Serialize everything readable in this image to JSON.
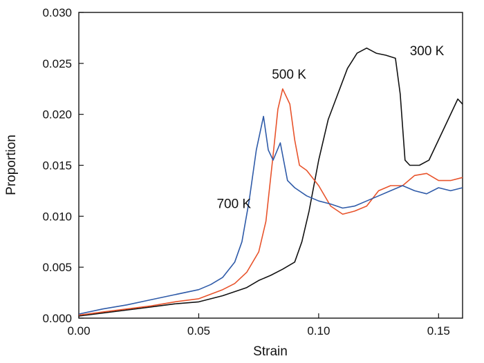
{
  "chart_data": {
    "type": "line",
    "title": "",
    "xlabel": "Strain",
    "ylabel": "Proportion",
    "xlim": [
      0.0,
      0.16
    ],
    "ylim": [
      0.0,
      0.03
    ],
    "xticks": [
      0.0,
      0.05,
      0.1,
      0.15
    ],
    "xtick_labels": [
      "0.00",
      "0.05",
      "0.10",
      "0.15"
    ],
    "yticks": [
      0.0,
      0.005,
      0.01,
      0.015,
      0.02,
      0.025,
      0.03
    ],
    "ytick_labels": [
      "0.000",
      "0.005",
      "0.010",
      "0.015",
      "0.020",
      "0.025",
      "0.030"
    ],
    "grid": false,
    "legend": "none",
    "series": [
      {
        "name": "300 K",
        "color": "#111111",
        "label_anchor": [
          0.138,
          0.0258
        ],
        "x": [
          0.0,
          0.01,
          0.02,
          0.03,
          0.04,
          0.05,
          0.06,
          0.07,
          0.075,
          0.08,
          0.085,
          0.09,
          0.093,
          0.096,
          0.1,
          0.104,
          0.108,
          0.112,
          0.116,
          0.12,
          0.124,
          0.128,
          0.132,
          0.134,
          0.136,
          0.138,
          0.142,
          0.146,
          0.15,
          0.154,
          0.158,
          0.16
        ],
        "y": [
          0.0002,
          0.0005,
          0.0008,
          0.0011,
          0.0014,
          0.0016,
          0.0022,
          0.003,
          0.0037,
          0.0042,
          0.0048,
          0.0055,
          0.0075,
          0.0105,
          0.0155,
          0.0195,
          0.022,
          0.0245,
          0.026,
          0.0265,
          0.026,
          0.0258,
          0.0255,
          0.022,
          0.0155,
          0.015,
          0.015,
          0.0155,
          0.0175,
          0.0195,
          0.0215,
          0.021
        ]
      },
      {
        "name": "500 K",
        "color": "#e8522a",
        "label_anchor": [
          0.0805,
          0.0235
        ],
        "x": [
          0.0,
          0.01,
          0.02,
          0.03,
          0.04,
          0.05,
          0.06,
          0.065,
          0.07,
          0.075,
          0.078,
          0.081,
          0.083,
          0.085,
          0.088,
          0.09,
          0.092,
          0.095,
          0.1,
          0.105,
          0.11,
          0.115,
          0.12,
          0.125,
          0.13,
          0.135,
          0.14,
          0.145,
          0.15,
          0.155,
          0.16
        ],
        "y": [
          0.0003,
          0.0006,
          0.0009,
          0.0012,
          0.0016,
          0.0019,
          0.0028,
          0.0034,
          0.0045,
          0.0065,
          0.0095,
          0.016,
          0.0205,
          0.0225,
          0.021,
          0.0175,
          0.015,
          0.0145,
          0.013,
          0.011,
          0.0102,
          0.0105,
          0.011,
          0.0125,
          0.013,
          0.013,
          0.014,
          0.0142,
          0.0135,
          0.0135,
          0.0138
        ]
      },
      {
        "name": "700 K",
        "color": "#2e5aa8",
        "label_anchor": [
          0.0575,
          0.0108
        ],
        "x": [
          0.0,
          0.01,
          0.02,
          0.03,
          0.04,
          0.05,
          0.055,
          0.06,
          0.065,
          0.068,
          0.071,
          0.074,
          0.077,
          0.079,
          0.081,
          0.084,
          0.087,
          0.09,
          0.095,
          0.1,
          0.105,
          0.11,
          0.115,
          0.12,
          0.125,
          0.13,
          0.135,
          0.14,
          0.145,
          0.15,
          0.155,
          0.16
        ],
        "y": [
          0.0004,
          0.0009,
          0.0013,
          0.0018,
          0.0023,
          0.0028,
          0.0033,
          0.004,
          0.0055,
          0.0075,
          0.0115,
          0.0165,
          0.0198,
          0.0165,
          0.0155,
          0.0172,
          0.0135,
          0.0128,
          0.012,
          0.0115,
          0.0112,
          0.0108,
          0.011,
          0.0115,
          0.012,
          0.0125,
          0.013,
          0.0125,
          0.0122,
          0.0128,
          0.0125,
          0.0128
        ]
      }
    ]
  }
}
